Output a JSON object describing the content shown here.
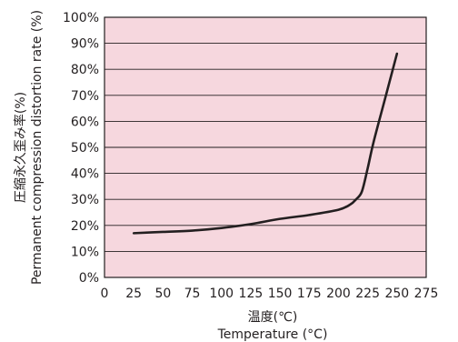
{
  "chart_data": {
    "type": "line",
    "xlabel": [
      "温度(℃)",
      "Temperature (°C)"
    ],
    "ylabel": [
      "圧縮永久歪み率(%)",
      "Permanent compression distortion rate (%)"
    ],
    "xlim": [
      0,
      275
    ],
    "ylim": [
      0,
      100
    ],
    "x_ticks": [
      "0",
      "25",
      "50",
      "75",
      "100",
      "125",
      "150",
      "175",
      "200",
      "225",
      "250",
      "275"
    ],
    "y_ticks": [
      "0%",
      "10%",
      "20%",
      "30%",
      "40%",
      "50%",
      "60%",
      "70%",
      "80%",
      "90%",
      "100%"
    ],
    "grid": "horizontal",
    "series": [
      {
        "x": [
          25,
          50,
          75,
          100,
          125,
          150,
          175,
          200,
          210,
          215,
          220,
          225,
          230,
          240,
          250
        ],
        "y": [
          17,
          17.5,
          18,
          19,
          20.5,
          22.5,
          24,
          26,
          28,
          30,
          33,
          42,
          52,
          69,
          86
        ]
      }
    ],
    "colors": {
      "plot_bg": "#f6d7de",
      "line": "#231f20",
      "grid": "#231f20"
    }
  }
}
